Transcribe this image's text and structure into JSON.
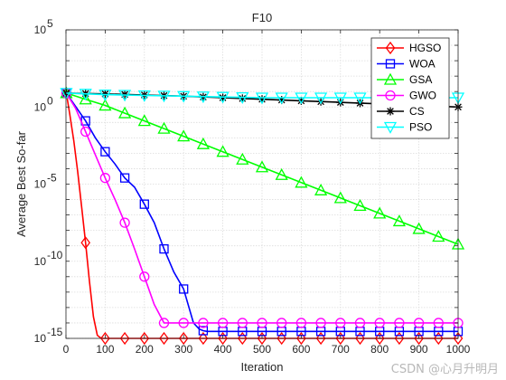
{
  "chart_data": {
    "type": "line",
    "title": "F10",
    "xlabel": "Iteration",
    "ylabel": "Average Best So-far",
    "xlim": [
      0,
      1000
    ],
    "ylim_log10": [
      -15,
      5
    ],
    "yscale": "log",
    "grid": true,
    "legend_position": "top-right",
    "x_ticks": [
      0,
      100,
      200,
      300,
      400,
      500,
      600,
      700,
      800,
      900,
      1000
    ],
    "x_tick_labels": [
      "0",
      "100",
      "200",
      "300",
      "400",
      "500",
      "600",
      "700",
      "800",
      "900",
      "1000"
    ],
    "y_ticks": [
      -15,
      -10,
      -5,
      0,
      5
    ],
    "y_tick_labels": [
      {
        "base": "10",
        "exp": "-15"
      },
      {
        "base": "10",
        "exp": "-10"
      },
      {
        "base": "10",
        "exp": "-5"
      },
      {
        "base": "10",
        "exp": "0"
      },
      {
        "base": "10",
        "exp": "5"
      }
    ],
    "series": [
      {
        "name": "HGSO",
        "color": "#ff0000",
        "marker": "diamond",
        "x": [
          1,
          10,
          20,
          30,
          40,
          50,
          60,
          70,
          80,
          90,
          100,
          120,
          150,
          200,
          300,
          400,
          500,
          600,
          700,
          800,
          900,
          1000
        ],
        "log10_y": [
          0.9,
          -0.5,
          -2.2,
          -4.2,
          -6.5,
          -8.8,
          -11.3,
          -13.6,
          -14.8,
          -15.0,
          -15.0,
          -15.0,
          -15.0,
          -15.0,
          -15.0,
          -15.0,
          -15.0,
          -15.0,
          -15.0,
          -15.0,
          -15.0,
          -15.0
        ],
        "marker_x": [
          1,
          50,
          100,
          150,
          200,
          250,
          300,
          350,
          400,
          450,
          500,
          550,
          600,
          650,
          700,
          750,
          800,
          850,
          900,
          950,
          1000
        ]
      },
      {
        "name": "WOA",
        "color": "#0000ff",
        "marker": "square",
        "x": [
          1,
          20,
          50,
          75,
          100,
          125,
          150,
          175,
          200,
          225,
          250,
          275,
          300,
          325,
          340,
          350,
          360,
          380,
          400,
          500,
          600,
          700,
          800,
          900,
          1000
        ],
        "log10_y": [
          0.9,
          0.2,
          -0.9,
          -2.0,
          -2.9,
          -3.7,
          -4.6,
          -5.2,
          -6.3,
          -7.5,
          -9.2,
          -10.7,
          -11.8,
          -14.0,
          -14.4,
          -14.5,
          -14.55,
          -14.55,
          -14.55,
          -14.55,
          -14.55,
          -14.55,
          -14.55,
          -14.55,
          -14.55
        ],
        "marker_x": [
          1,
          50,
          100,
          150,
          200,
          250,
          300,
          350,
          400,
          450,
          500,
          550,
          600,
          650,
          700,
          750,
          800,
          850,
          900,
          950,
          1000
        ]
      },
      {
        "name": "GSA",
        "color": "#00ff00",
        "marker": "triangle",
        "x": [
          1,
          50,
          100,
          150,
          200,
          250,
          300,
          350,
          400,
          450,
          500,
          550,
          600,
          650,
          700,
          750,
          800,
          850,
          900,
          950,
          1000
        ],
        "log10_y": [
          0.9,
          0.5,
          0.1,
          -0.4,
          -0.9,
          -1.4,
          -1.9,
          -2.4,
          -2.9,
          -3.4,
          -3.9,
          -4.4,
          -4.9,
          -5.4,
          -5.9,
          -6.4,
          -6.9,
          -7.4,
          -7.9,
          -8.4,
          -8.9
        ],
        "marker_x": [
          1,
          50,
          100,
          150,
          200,
          250,
          300,
          350,
          400,
          450,
          500,
          550,
          600,
          650,
          700,
          750,
          800,
          850,
          900,
          950,
          1000
        ]
      },
      {
        "name": "GWO",
        "color": "#ff00ff",
        "marker": "circle",
        "x": [
          1,
          25,
          50,
          75,
          100,
          125,
          150,
          175,
          200,
          225,
          250,
          300,
          400,
          500,
          600,
          700,
          800,
          900,
          1000
        ],
        "log10_y": [
          0.9,
          -0.1,
          -1.6,
          -3.1,
          -4.6,
          -6.0,
          -7.5,
          -9.2,
          -11.0,
          -12.8,
          -14.0,
          -14.0,
          -14.0,
          -14.0,
          -14.0,
          -14.0,
          -14.0,
          -14.0,
          -14.0
        ],
        "marker_x": [
          1,
          50,
          100,
          150,
          200,
          250,
          300,
          350,
          400,
          450,
          500,
          550,
          600,
          650,
          700,
          750,
          800,
          850,
          900,
          950,
          1000
        ]
      },
      {
        "name": "CS",
        "color": "#000000",
        "marker": "asterisk",
        "x": [
          1,
          100,
          200,
          300,
          400,
          500,
          600,
          700,
          800,
          900,
          1000
        ],
        "log10_y": [
          0.9,
          0.85,
          0.78,
          0.7,
          0.6,
          0.5,
          0.4,
          0.3,
          0.2,
          0.1,
          0.0
        ],
        "marker_x": [
          1,
          50,
          100,
          150,
          200,
          250,
          300,
          350,
          400,
          450,
          500,
          550,
          600,
          650,
          700,
          750,
          800,
          850,
          900,
          950,
          1000
        ]
      },
      {
        "name": "PSO",
        "color": "#00ffff",
        "marker": "triangle-down",
        "x": [
          1,
          100,
          200,
          300,
          400,
          500,
          600,
          700,
          800,
          900,
          1000
        ],
        "log10_y": [
          0.9,
          0.8,
          0.75,
          0.7,
          0.65,
          0.6,
          0.6,
          0.6,
          0.6,
          0.6,
          0.6
        ],
        "marker_x": [
          1,
          50,
          100,
          150,
          200,
          250,
          300,
          350,
          400,
          450,
          500,
          550,
          600,
          650,
          700,
          750,
          800,
          850,
          900,
          950,
          1000
        ]
      }
    ]
  },
  "watermark": "CSDN @心月升明月"
}
